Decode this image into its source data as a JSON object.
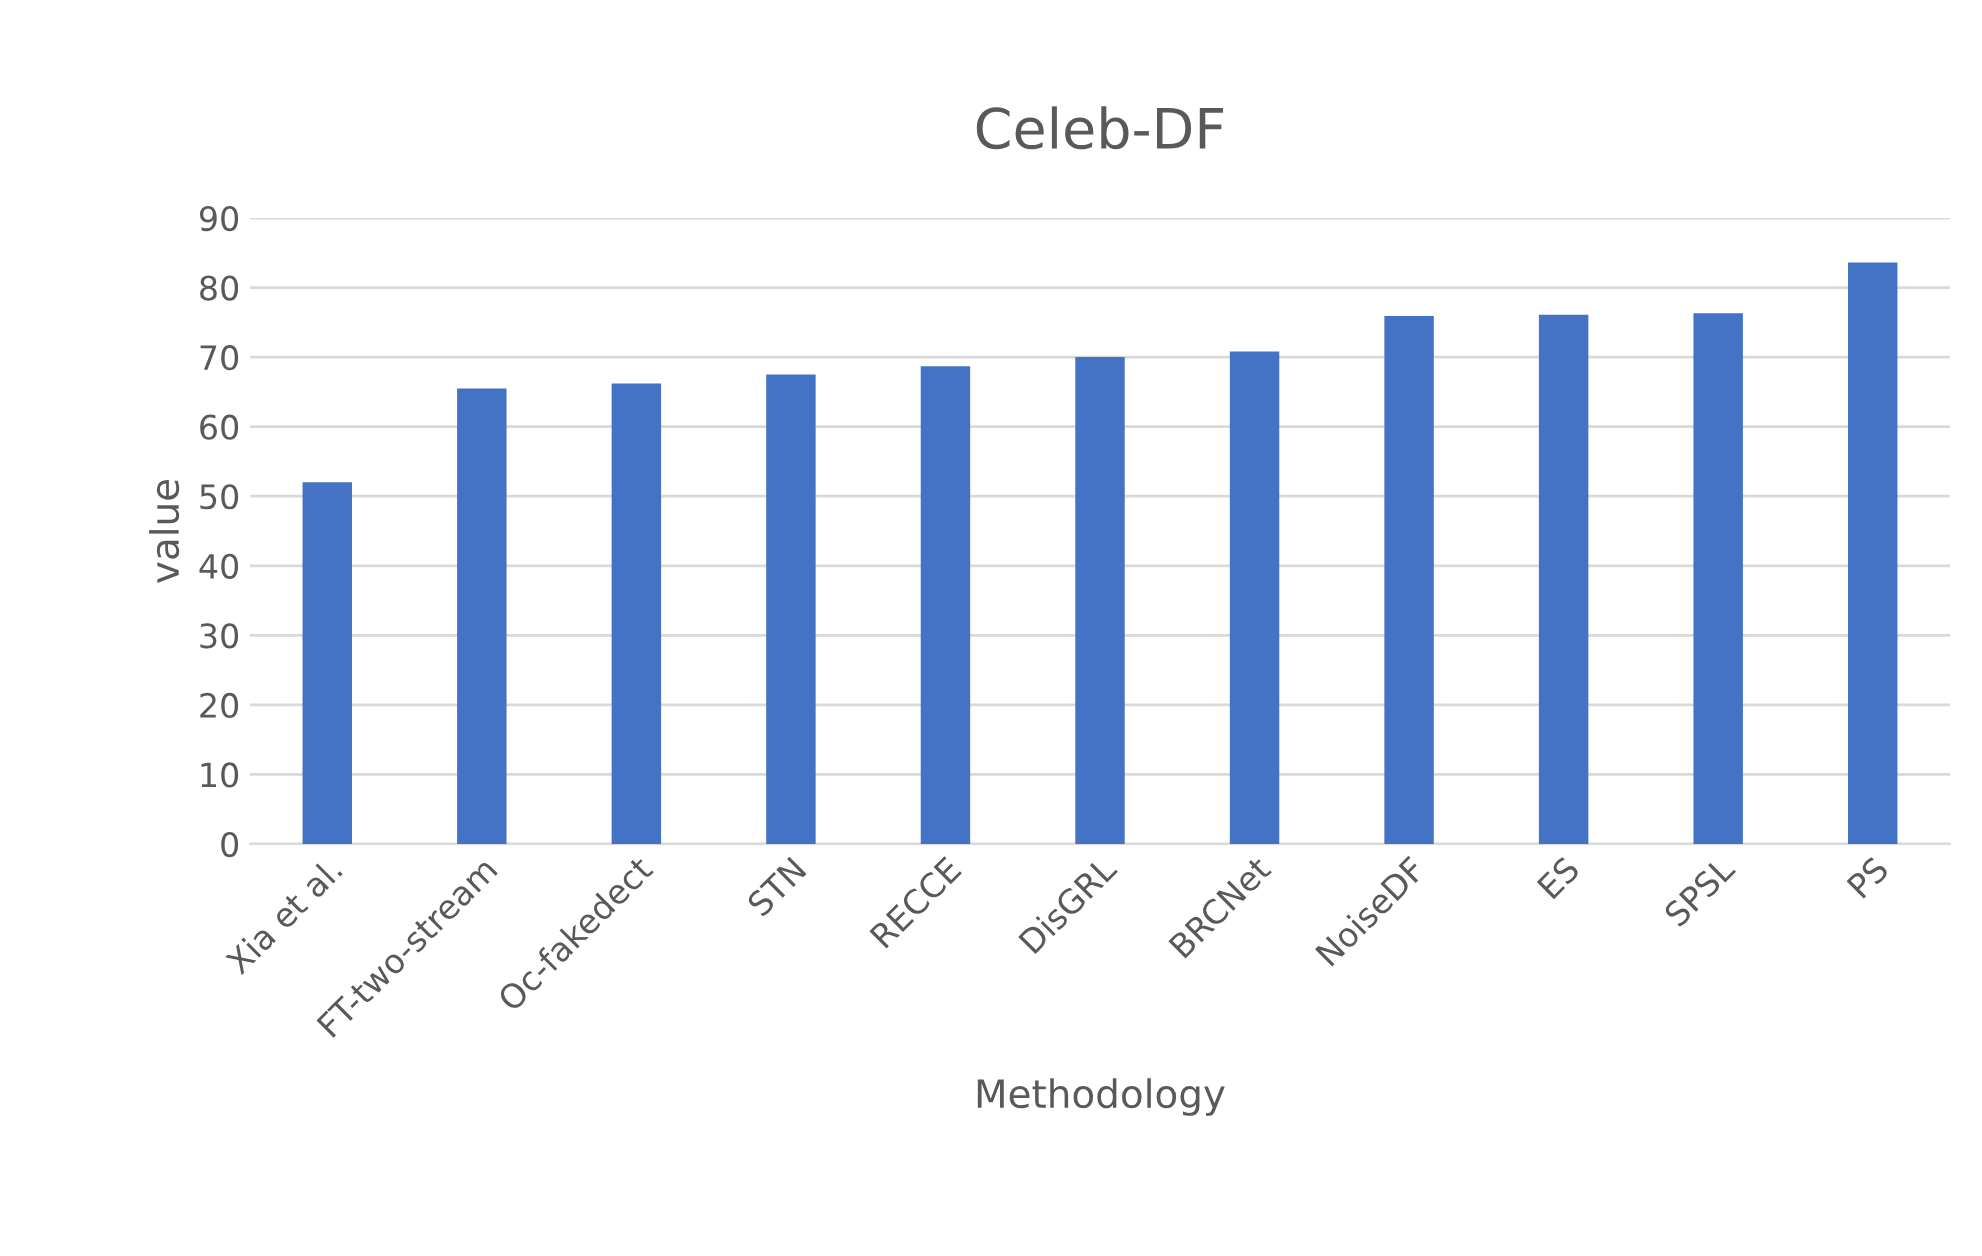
{
  "chart_data": {
    "type": "bar",
    "title": "Celeb-DF",
    "xlabel": "Methodology",
    "ylabel": "value",
    "categories": [
      "Xia et al.",
      "FT-two-stream",
      "Oc-fakedect",
      "STN",
      "RECCE",
      "DisGRL",
      "BRCNet",
      "NoiseDF",
      "ES",
      "SPSL",
      "PS"
    ],
    "values": [
      52.0,
      65.5,
      66.2,
      67.5,
      68.7,
      70.0,
      70.8,
      75.9,
      76.1,
      76.3,
      83.6
    ],
    "color": "#4472c4",
    "ylim": [
      0,
      90
    ],
    "yticks": [
      0,
      10,
      20,
      30,
      40,
      50,
      60,
      70,
      80,
      90
    ],
    "grid": "y"
  }
}
